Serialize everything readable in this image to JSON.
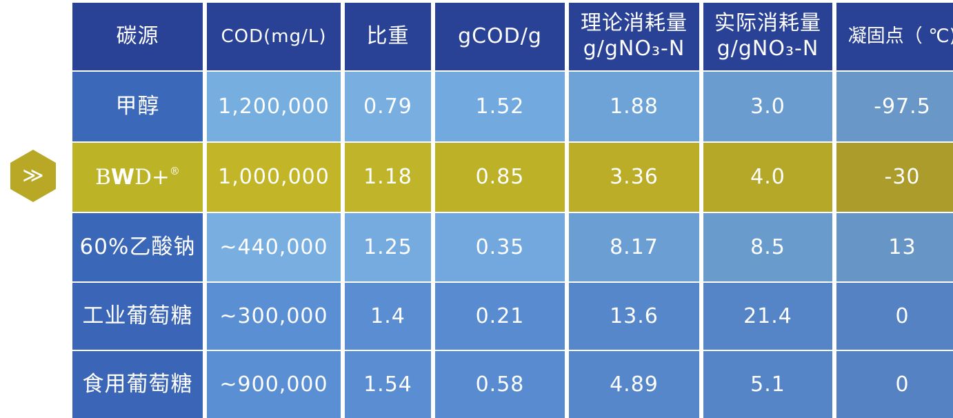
{
  "marker": {
    "glyph": "≫",
    "icon": "double-chevron-right-icon",
    "color": "#b9a726"
  },
  "table": {
    "headers": {
      "source": "碳源",
      "cod": "COD(mg/L)",
      "gravity": "比重",
      "gcod": "gCOD/g",
      "theory_line1": "理论消耗量",
      "theory_line2": "g/gNO₃-N",
      "actual_line1": "实际消耗量",
      "actual_line2": "g/gNO₃-N",
      "freeze": "凝固点（ ℃)"
    },
    "rows": [
      {
        "source": "甲醇",
        "cod": "1,200,000",
        "gravity": "0.79",
        "gcod": "1.52",
        "theory": "1.88",
        "actual": "3.0",
        "freeze": "-97.5"
      },
      {
        "source_brand_b1": "B",
        "source_brand_w": "W",
        "source_brand_rest": "D+",
        "source_brand_mark": "®",
        "cod": "1,000,000",
        "gravity": "1.18",
        "gcod": "0.85",
        "theory": "3.36",
        "actual": "4.0",
        "freeze": "-30"
      },
      {
        "source": "60%乙酸钠",
        "cod": "~440,000",
        "gravity": "1.25",
        "gcod": "0.35",
        "theory": "8.17",
        "actual": "8.5",
        "freeze": "13"
      },
      {
        "source": "工业葡萄糖",
        "cod": "~300,000",
        "gravity": "1.4",
        "gcod": "0.21",
        "theory": "13.6",
        "actual": "21.4",
        "freeze": "0"
      },
      {
        "source": "食用葡萄糖",
        "cod": "~900,000",
        "gravity": "1.54",
        "gcod": "0.58",
        "theory": "4.89",
        "actual": "5.1",
        "freeze": "0"
      }
    ]
  },
  "colors": {
    "header": "#2a4295",
    "highlight": "#c2b628",
    "light_blue": "#78aee0",
    "mid_blue": "#5a8dd1",
    "first_column": "#3b68b9"
  }
}
